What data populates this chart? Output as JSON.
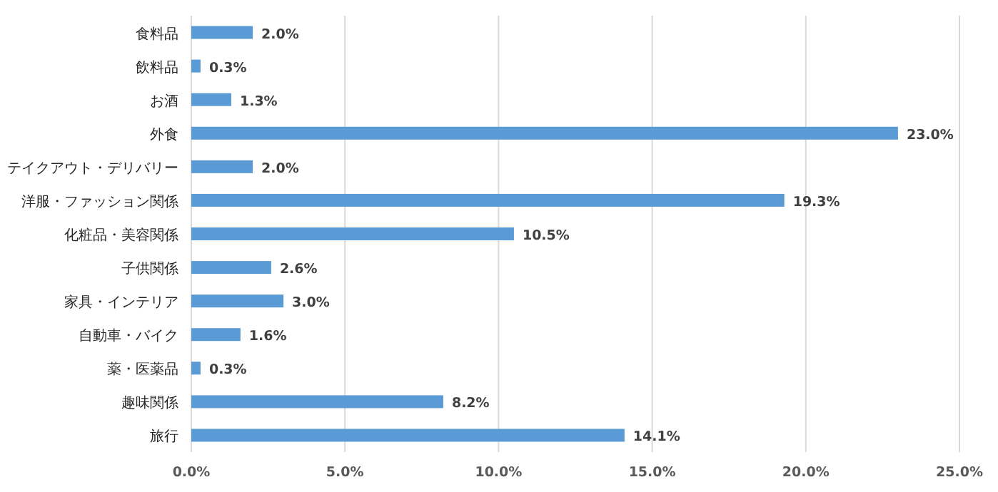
{
  "chart_data": {
    "type": "bar",
    "orientation": "horizontal",
    "categories": [
      "食料品",
      "飲料品",
      "お酒",
      "外食",
      "テイクアウト・デリバリー",
      "洋服・ファッション関係",
      "化粧品・美容関係",
      "子供関係",
      "家具・インテリア",
      "自動車・バイク",
      "薬・医薬品",
      "趣味関係",
      "旅行"
    ],
    "values": [
      2.0,
      0.3,
      1.3,
      23.0,
      2.0,
      19.3,
      10.5,
      2.6,
      3.0,
      1.6,
      0.3,
      8.2,
      14.1
    ],
    "color": "#5b9bd5",
    "xlim": [
      0,
      25
    ],
    "xticks": [
      {
        "value": 0,
        "label": "0.0%"
      },
      {
        "value": 5,
        "label": "5.0%"
      },
      {
        "value": 10,
        "label": "10.0%"
      },
      {
        "value": 15,
        "label": "15.0%"
      },
      {
        "value": 20,
        "label": "20.0%"
      },
      {
        "value": 25,
        "label": "25.0%"
      }
    ],
    "grid": "x",
    "value_labels": [
      "2.0%",
      "0.3%",
      "1.3%",
      "23.0%",
      "2.0%",
      "19.3%",
      "10.5%",
      "2.6%",
      "3.0%",
      "1.6%",
      "0.3%",
      "8.2%",
      "14.1%"
    ]
  }
}
